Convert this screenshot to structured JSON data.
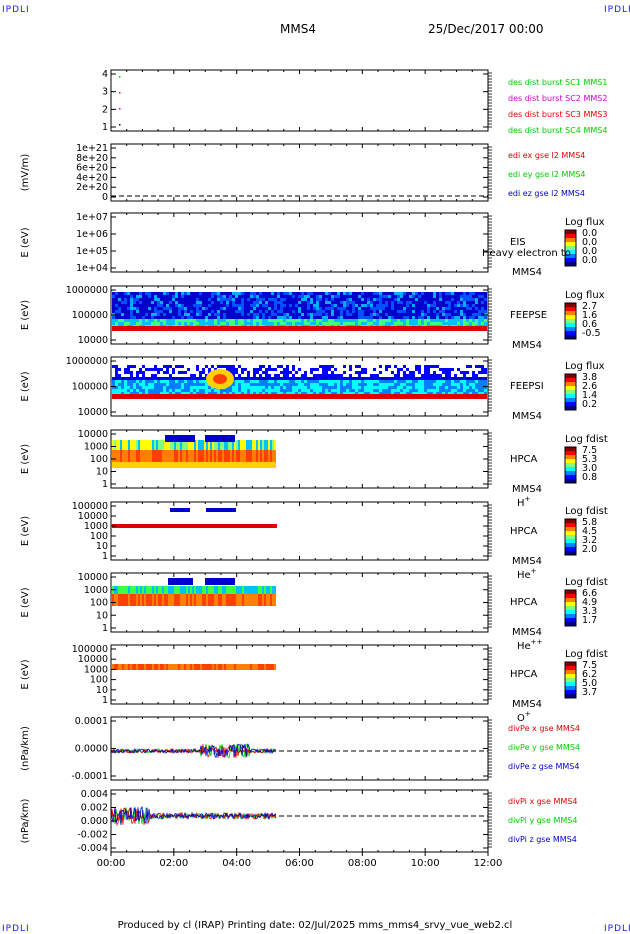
{
  "corners": {
    "tl": "IPDLI",
    "tr": "IPDLI",
    "bl": "IPDLI",
    "br": "IPDLI"
  },
  "header": {
    "spacecraft": "MMS4",
    "datetime": "25/Dec/2017 00:00"
  },
  "footer": {
    "text": "Produced by cl (IRAP)   Printing date: 02/Jul/2025   mms_mms4_srvy_vue_web2.cl"
  },
  "colors": {
    "red": "#e00000",
    "green": "#00cc00",
    "blue": "#0000cc",
    "magenta": "#cc00cc"
  },
  "chart_data": [
    {
      "type": "scatter",
      "title": "",
      "ylabel": "",
      "y_ticks": [
        "4",
        "3",
        "2",
        "1"
      ],
      "legend": [
        {
          "label": "des dist burst SC1 MMS1",
          "color": "#00cc00"
        },
        {
          "label": "des dist burst SC2 MMS2",
          "color": "#cc00cc"
        },
        {
          "label": "des dist burst SC3 MMS3",
          "color": "#e00000"
        },
        {
          "label": "des dist burst SC4 MMS4",
          "color": "#00cc00"
        }
      ]
    },
    {
      "type": "line",
      "ylabel": "(mV/m)",
      "y_ticks": [
        "1e+21",
        "8e+20",
        "6e+20",
        "4e+20",
        "2e+20",
        "0"
      ],
      "legend": [
        {
          "label": "edi ex gse l2 MMS4",
          "color": "#e00000"
        },
        {
          "label": "edi ey gse l2 MMS4",
          "color": "#00cc00"
        },
        {
          "label": "edi ez gse l2 MMS4",
          "color": "#0000cc"
        }
      ]
    },
    {
      "type": "heatmap",
      "ylabel": "E (eV)",
      "y_ticks": [
        "1e+07",
        "1e+06",
        "1e+05",
        "1e+04"
      ],
      "inst": "EIS",
      "sc": "MMS4",
      "species": "",
      "cb_title": "Log flux",
      "cb_ticks": [
        "0.0",
        "0.0",
        "0.0",
        "0.0"
      ],
      "overlay": "Heavy electron to"
    },
    {
      "type": "heatmap",
      "ylabel": "E (eV)",
      "y_ticks": [
        "1000000",
        "100000",
        "10000"
      ],
      "inst": "FEEPSE",
      "sc": "MMS4",
      "species": "",
      "cb_title": "Log flux",
      "cb_ticks": [
        "2.7",
        "1.6",
        "0.6",
        "-0.5"
      ]
    },
    {
      "type": "heatmap",
      "ylabel": "E (eV)",
      "y_ticks": [
        "1000000",
        "100000",
        "10000"
      ],
      "inst": "FEEPSI",
      "sc": "MMS4",
      "species": "",
      "cb_title": "Log flux",
      "cb_ticks": [
        "3.8",
        "2.6",
        "1.4",
        "0.2"
      ]
    },
    {
      "type": "heatmap",
      "ylabel": "E (eV)",
      "y_ticks": [
        "10000",
        "1000",
        "100",
        "10",
        "1"
      ],
      "inst": "HPCA",
      "sc": "MMS4",
      "species": "H",
      "species_sup": "+",
      "cb_title": "Log fdist",
      "cb_ticks": [
        "7.5",
        "5.3",
        "3.0",
        "0.8"
      ]
    },
    {
      "type": "heatmap",
      "ylabel": "E (eV)",
      "y_ticks": [
        "100000",
        "10000",
        "1000",
        "100",
        "10",
        "1"
      ],
      "inst": "HPCA",
      "sc": "MMS4",
      "species": "He",
      "species_sup": "+",
      "cb_title": "Log fdist",
      "cb_ticks": [
        "5.8",
        "4.5",
        "3.2",
        "2.0"
      ]
    },
    {
      "type": "heatmap",
      "ylabel": "E (eV)",
      "y_ticks": [
        "10000",
        "1000",
        "100",
        "10",
        "1"
      ],
      "inst": "HPCA",
      "sc": "MMS4",
      "species": "He",
      "species_sup": "++",
      "cb_title": "Log fdist",
      "cb_ticks": [
        "6.6",
        "4.9",
        "3.3",
        "1.7"
      ]
    },
    {
      "type": "heatmap",
      "ylabel": "E (eV)",
      "y_ticks": [
        "100000",
        "10000",
        "1000",
        "100",
        "10",
        "1"
      ],
      "inst": "HPCA",
      "sc": "MMS4",
      "species": "O",
      "species_sup": "+",
      "cb_title": "Log fdist",
      "cb_ticks": [
        "7.5",
        "6.2",
        "5.0",
        "3.7"
      ]
    },
    {
      "type": "line",
      "ylabel": "(nPa/km)",
      "y_ticks": [
        "0.0001",
        "0.0000",
        "-0.0001"
      ],
      "legend": [
        {
          "label": "divPe x gse MMS4",
          "color": "#e00000"
        },
        {
          "label": "divPe y gse MMS4",
          "color": "#00cc00"
        },
        {
          "label": "divPe z gse MMS4",
          "color": "#0000cc"
        }
      ]
    },
    {
      "type": "line",
      "ylabel": "(nPa/km)",
      "y_ticks": [
        "0.004",
        "0.002",
        "0.000",
        "-0.002",
        "-0.004"
      ],
      "legend": [
        {
          "label": "divPi x gse MMS4",
          "color": "#e00000"
        },
        {
          "label": "divPi y gse MMS4",
          "color": "#00cc00"
        },
        {
          "label": "divPi z gse MMS4",
          "color": "#0000cc"
        }
      ]
    }
  ],
  "x_axis": {
    "ticks": [
      "00:00",
      "02:00",
      "04:00",
      "06:00",
      "08:00",
      "10:00",
      "12:00"
    ]
  }
}
